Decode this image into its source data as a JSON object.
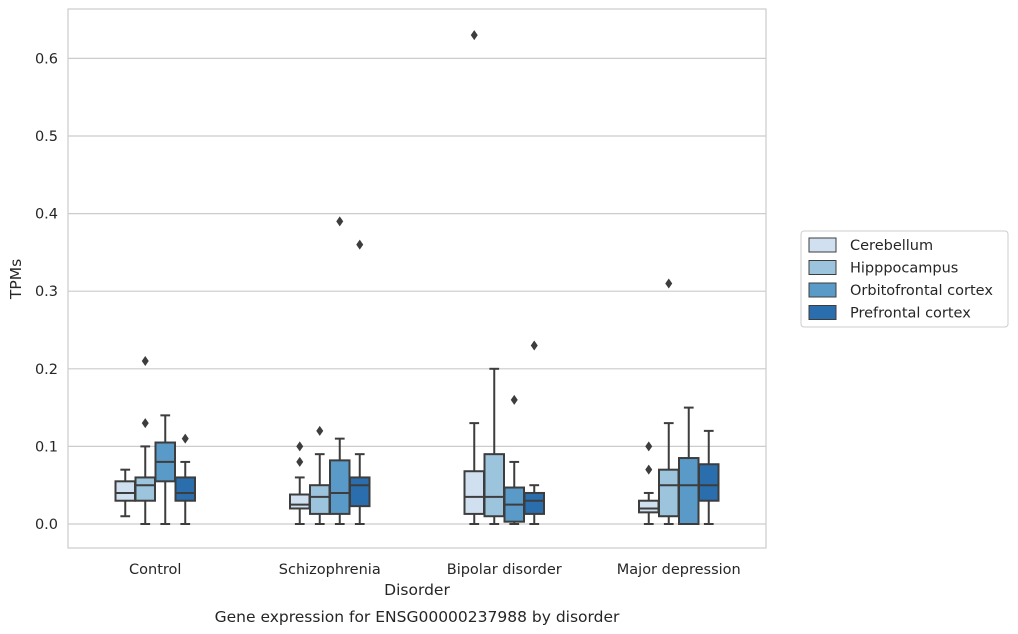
{
  "chart_data": {
    "type": "box",
    "caption": "Gene expression for ENSG00000237988 by disorder",
    "xlabel": "Disorder",
    "ylabel": "TPMs",
    "ylim": [
      -0.03,
      0.66
    ],
    "yticks": [
      "0.0",
      "0.1",
      "0.2",
      "0.3",
      "0.4",
      "0.5",
      "0.6"
    ],
    "grid": true,
    "legend_position": "right-center",
    "categories": [
      "Control",
      "Schizophrenia",
      "Bipolar disorder",
      "Major depression"
    ],
    "series": [
      {
        "name": "Cerebellum",
        "color": "#d0e0f0",
        "boxes": [
          {
            "whisker_low": 0.01,
            "q1": 0.03,
            "median": 0.04,
            "q3": 0.055,
            "whisker_high": 0.07,
            "outliers": []
          },
          {
            "whisker_low": 0.0,
            "q1": 0.02,
            "median": 0.025,
            "q3": 0.038,
            "whisker_high": 0.06,
            "outliers": [
              0.08,
              0.1
            ]
          },
          {
            "whisker_low": 0.0,
            "q1": 0.013,
            "median": 0.035,
            "q3": 0.068,
            "whisker_high": 0.13,
            "outliers": [
              0.63
            ]
          },
          {
            "whisker_low": 0.0,
            "q1": 0.015,
            "median": 0.02,
            "q3": 0.03,
            "whisker_high": 0.04,
            "outliers": [
              0.07,
              0.1
            ]
          }
        ]
      },
      {
        "name": "Hipppocampus",
        "color": "#9cc4dd",
        "boxes": [
          {
            "whisker_low": 0.0,
            "q1": 0.03,
            "median": 0.05,
            "q3": 0.06,
            "whisker_high": 0.1,
            "outliers": [
              0.13,
              0.21
            ]
          },
          {
            "whisker_low": 0.0,
            "q1": 0.013,
            "median": 0.035,
            "q3": 0.05,
            "whisker_high": 0.09,
            "outliers": [
              0.12
            ]
          },
          {
            "whisker_low": 0.0,
            "q1": 0.01,
            "median": 0.035,
            "q3": 0.09,
            "whisker_high": 0.2,
            "outliers": []
          },
          {
            "whisker_low": 0.0,
            "q1": 0.01,
            "median": 0.05,
            "q3": 0.07,
            "whisker_high": 0.13,
            "outliers": [
              0.31
            ]
          }
        ]
      },
      {
        "name": "Orbitofrontal cortex",
        "color": "#5a9ac8",
        "boxes": [
          {
            "whisker_low": 0.0,
            "q1": 0.055,
            "median": 0.08,
            "q3": 0.105,
            "whisker_high": 0.14,
            "outliers": []
          },
          {
            "whisker_low": 0.0,
            "q1": 0.013,
            "median": 0.04,
            "q3": 0.082,
            "whisker_high": 0.11,
            "outliers": [
              0.39
            ]
          },
          {
            "whisker_low": 0.0,
            "q1": 0.003,
            "median": 0.025,
            "q3": 0.047,
            "whisker_high": 0.08,
            "outliers": [
              0.16
            ]
          },
          {
            "whisker_low": 0.0,
            "q1": 0.0,
            "median": 0.05,
            "q3": 0.085,
            "whisker_high": 0.15,
            "outliers": []
          }
        ]
      },
      {
        "name": "Prefrontal cortex",
        "color": "#2b6eae",
        "boxes": [
          {
            "whisker_low": 0.0,
            "q1": 0.03,
            "median": 0.04,
            "q3": 0.06,
            "whisker_high": 0.08,
            "outliers": [
              0.11
            ]
          },
          {
            "whisker_low": 0.0,
            "q1": 0.023,
            "median": 0.05,
            "q3": 0.06,
            "whisker_high": 0.09,
            "outliers": [
              0.36
            ]
          },
          {
            "whisker_low": 0.0,
            "q1": 0.013,
            "median": 0.03,
            "q3": 0.04,
            "whisker_high": 0.05,
            "outliers": [
              0.23
            ]
          },
          {
            "whisker_low": 0.0,
            "q1": 0.03,
            "median": 0.05,
            "q3": 0.077,
            "whisker_high": 0.12,
            "outliers": []
          }
        ]
      }
    ]
  }
}
